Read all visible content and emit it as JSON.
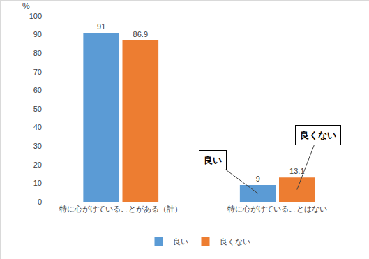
{
  "chart_data": {
    "type": "bar",
    "y_label": "%",
    "categories": [
      "特に心がけていることがある（計）",
      "特に心がけていることはない"
    ],
    "series": [
      {
        "name": "良い",
        "color": "#5b9bd5",
        "values": [
          91,
          9
        ]
      },
      {
        "name": "良くない",
        "color": "#ed7d31",
        "values": [
          86.9,
          13.1
        ]
      }
    ],
    "ylim": [
      0,
      100
    ],
    "yticks": [
      0,
      10,
      20,
      30,
      40,
      50,
      60,
      70,
      80,
      90,
      100
    ],
    "grid": false,
    "legend": "bottom",
    "data_labels": true,
    "annotations": [
      {
        "text": "良い",
        "category": "特に心がけていることはない",
        "series": "良い"
      },
      {
        "text": "良くない",
        "category": "特に心がけていることはない",
        "series": "良くない"
      }
    ]
  }
}
